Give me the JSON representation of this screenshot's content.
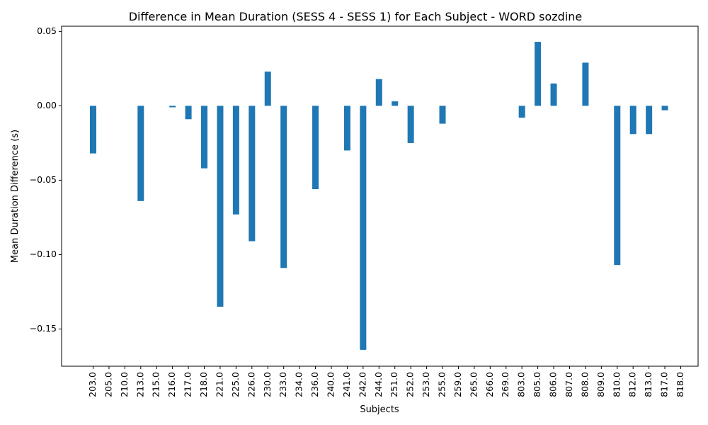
{
  "chart_data": {
    "type": "bar",
    "title": "Difference in Mean Duration (SESS 4 - SESS 1) for Each Subject - WORD sozdine",
    "xlabel": "Subjects",
    "ylabel": "Mean Duration Difference (s)",
    "categories": [
      "203.0",
      "205.0",
      "210.0",
      "213.0",
      "215.0",
      "216.0",
      "217.0",
      "218.0",
      "221.0",
      "225.0",
      "226.0",
      "230.0",
      "233.0",
      "234.0",
      "236.0",
      "240.0",
      "241.0",
      "242.0",
      "244.0",
      "251.0",
      "252.0",
      "253.0",
      "255.0",
      "259.0",
      "265.0",
      "266.0",
      "269.0",
      "803.0",
      "805.0",
      "806.0",
      "807.0",
      "808.0",
      "809.0",
      "810.0",
      "812.0",
      "813.0",
      "817.0",
      "818.0"
    ],
    "values": [
      -0.032,
      0,
      0,
      -0.064,
      0,
      -0.001,
      -0.009,
      -0.042,
      -0.135,
      -0.073,
      -0.091,
      0.023,
      -0.109,
      0,
      -0.056,
      0,
      -0.03,
      -0.164,
      0.018,
      0.003,
      -0.025,
      0,
      -0.012,
      0,
      0,
      0,
      0,
      -0.008,
      0.043,
      0.015,
      0,
      0.029,
      0,
      -0.107,
      -0.019,
      -0.019,
      -0.003,
      0
    ],
    "ylim": [
      -0.175,
      0.0535
    ],
    "yticks": [
      0.05,
      0.0,
      -0.05,
      -0.1,
      -0.15
    ],
    "ytick_labels": [
      "0.05",
      "0.00",
      "−0.05",
      "−0.10",
      "−0.15"
    ],
    "bar_color": "#1f77b4",
    "grid": false,
    "legend": "none"
  }
}
